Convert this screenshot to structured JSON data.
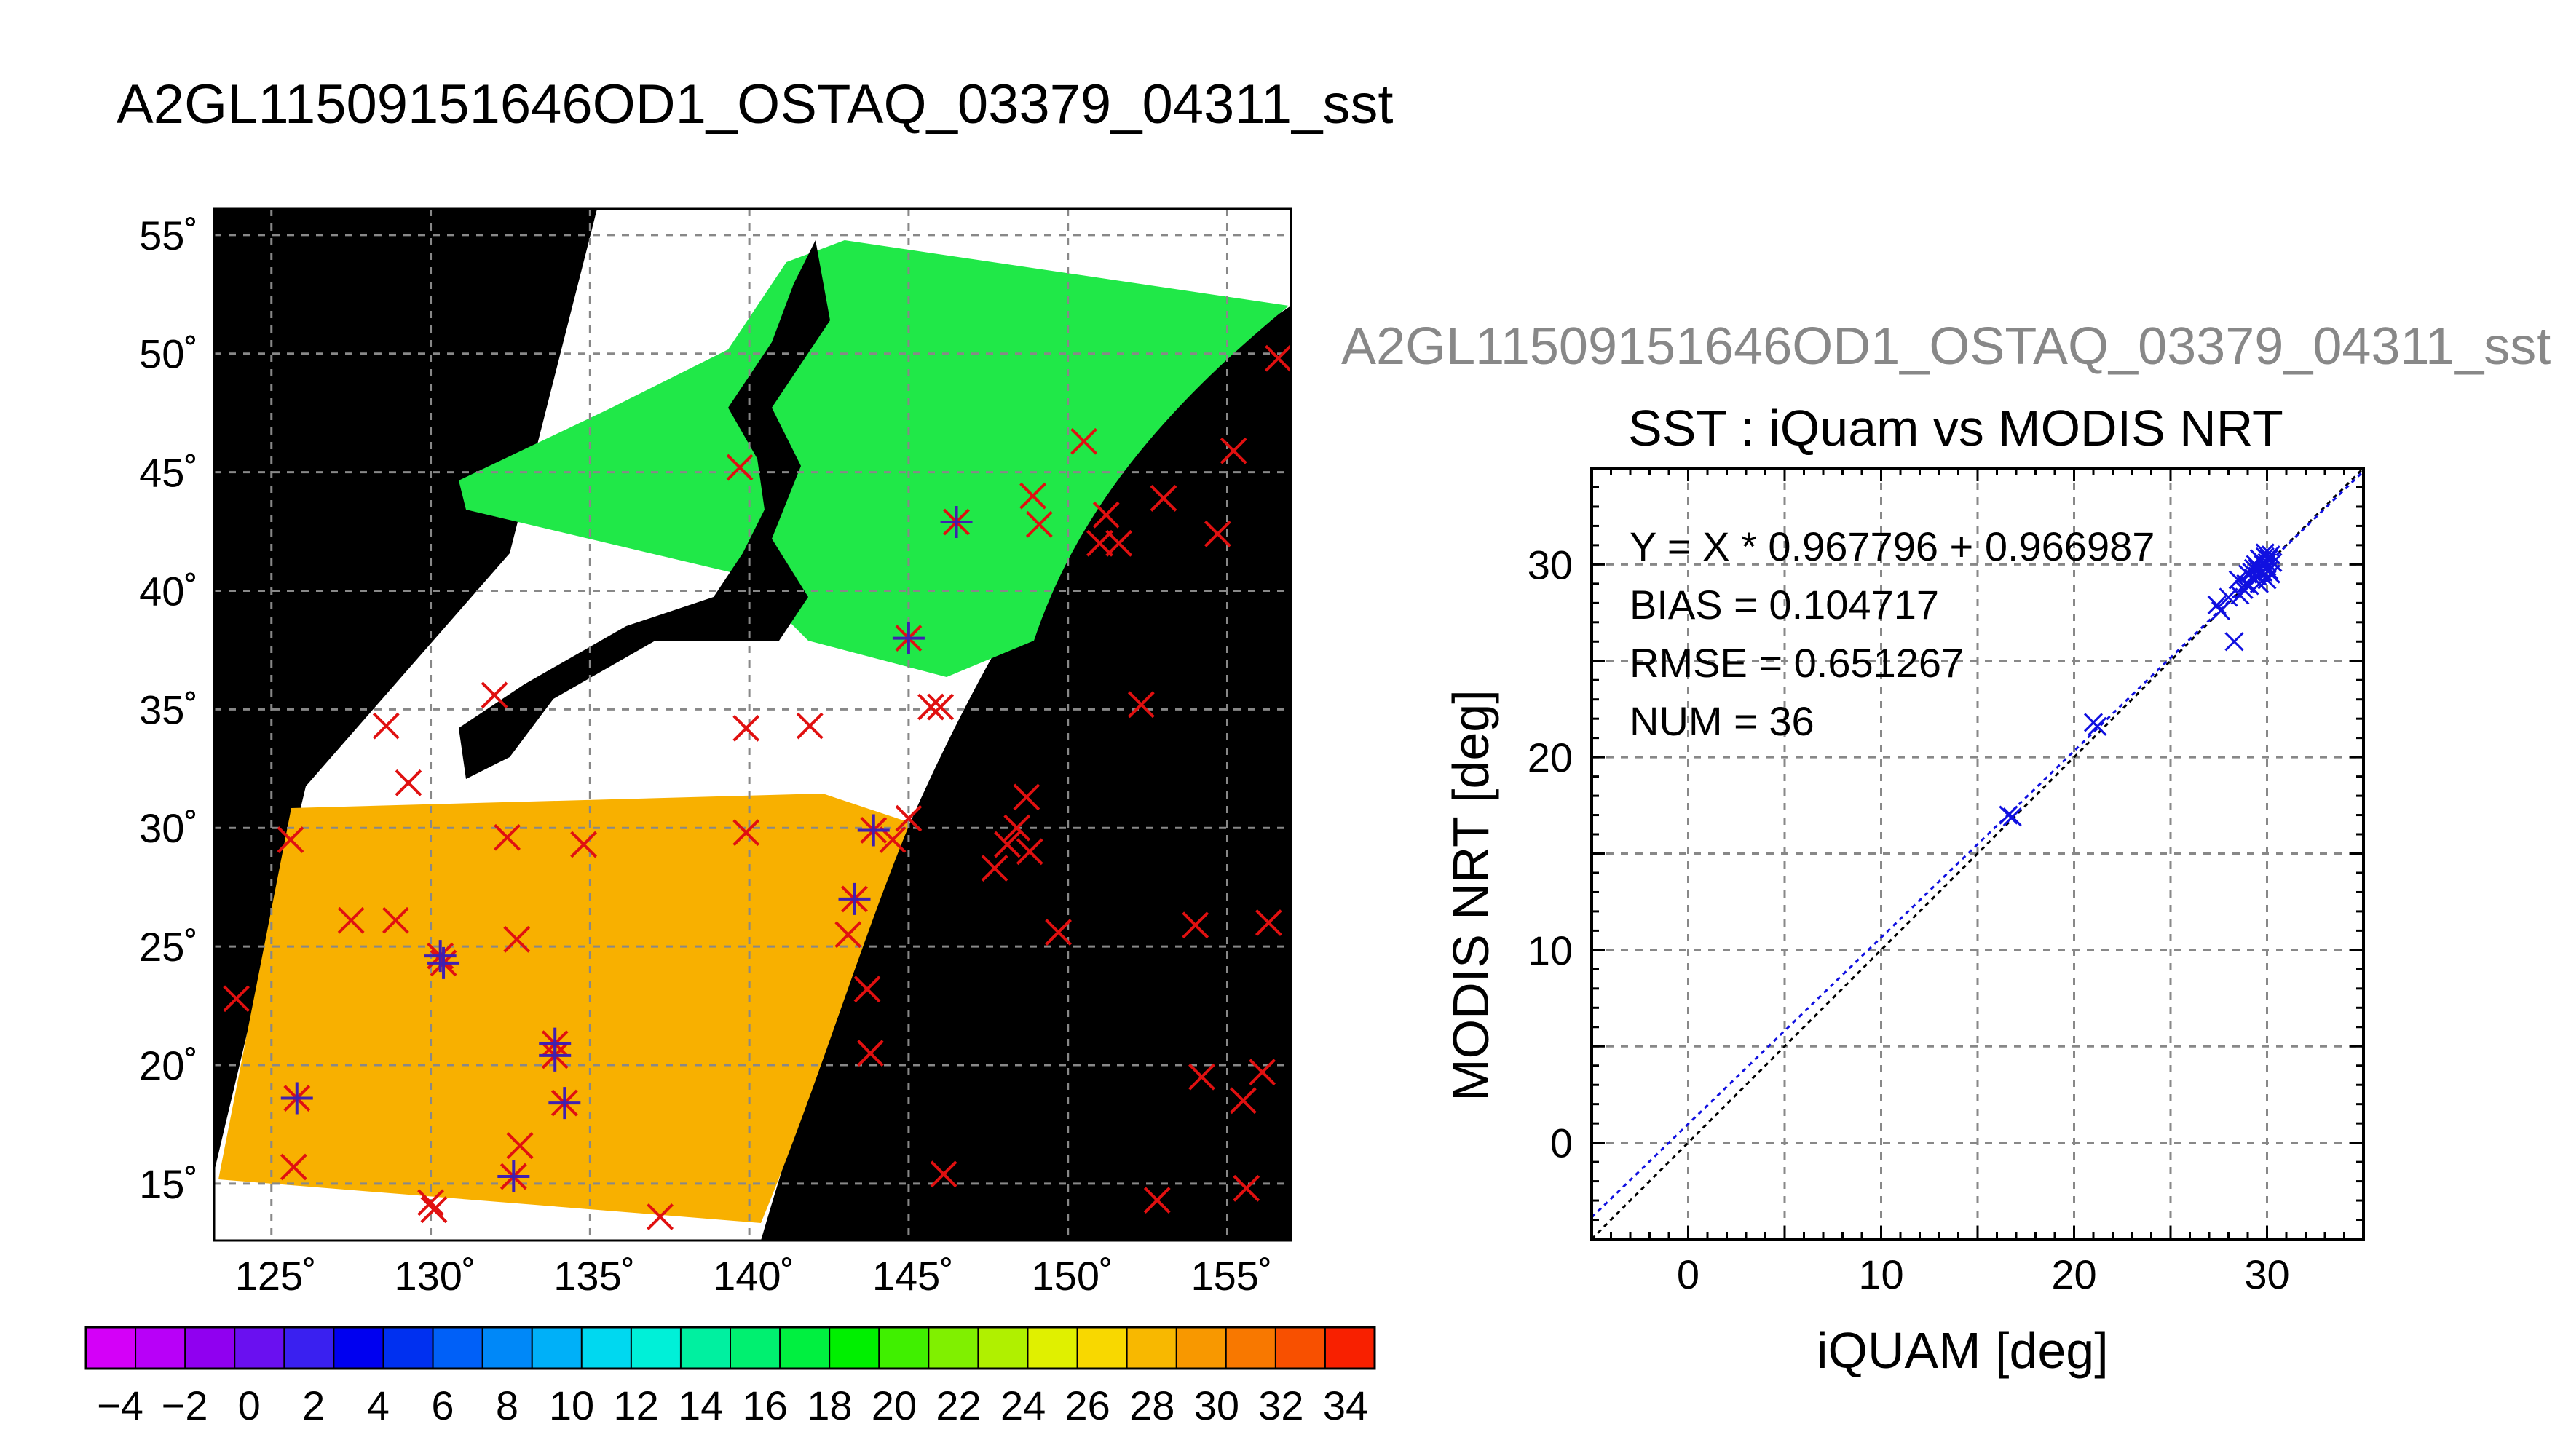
{
  "map": {
    "title": "A2GL11509151646OD1_OSTAQ_03379_04311_sst",
    "lat_tick_labels": [
      "55˚",
      "50˚",
      "45˚",
      "40˚",
      "35˚",
      "30˚",
      "25˚",
      "20˚",
      "15˚"
    ],
    "lon_tick_labels": [
      "125˚",
      "130˚",
      "135˚",
      "140˚",
      "145˚",
      "150˚",
      "155˚"
    ],
    "colorbar": {
      "tick_labels": [
        "−4",
        "−2",
        "0",
        "2",
        "4",
        "6",
        "8",
        "10",
        "12",
        "14",
        "16",
        "18",
        "20",
        "22",
        "24",
        "26",
        "28",
        "30",
        "32",
        "34"
      ],
      "colors": [
        "#d400f8",
        "#b800f8",
        "#9000f0",
        "#6a10f0",
        "#3a20f0",
        "#0000f0",
        "#0030f0",
        "#0060f8",
        "#0088f8",
        "#00b0f8",
        "#00d8f0",
        "#00f0d8",
        "#00f0a0",
        "#00f070",
        "#00f040",
        "#00f000",
        "#40f000",
        "#80f000",
        "#b0f000",
        "#e0f000",
        "#f8d800",
        "#f8b800",
        "#f89800",
        "#f87800",
        "#f85000",
        "#f82000"
      ]
    },
    "obs_markers_lonlat": [
      [
        123.9,
        22.8
      ],
      [
        125.6,
        29.5
      ],
      [
        125.8,
        18.6
      ],
      [
        125.7,
        15.7
      ],
      [
        127.5,
        26.1
      ],
      [
        128.6,
        34.3
      ],
      [
        128.9,
        26.1
      ],
      [
        129.3,
        31.9
      ],
      [
        130.0,
        14.2
      ],
      [
        130.1,
        13.9
      ],
      [
        130.3,
        24.6
      ],
      [
        130.4,
        24.3
      ],
      [
        132.0,
        35.6
      ],
      [
        132.4,
        29.6
      ],
      [
        132.6,
        15.3
      ],
      [
        132.7,
        25.3
      ],
      [
        132.8,
        16.6
      ],
      [
        133.9,
        20.9
      ],
      [
        133.9,
        20.4
      ],
      [
        134.2,
        18.4
      ],
      [
        134.8,
        29.3
      ],
      [
        137.2,
        13.6
      ],
      [
        139.7,
        45.2
      ],
      [
        139.9,
        34.2
      ],
      [
        139.9,
        29.8
      ],
      [
        141.9,
        34.3
      ],
      [
        143.1,
        25.5
      ],
      [
        143.3,
        27.0
      ],
      [
        143.7,
        23.2
      ],
      [
        143.8,
        20.5
      ],
      [
        143.9,
        29.9
      ],
      [
        144.5,
        29.5
      ],
      [
        145.0,
        30.4
      ],
      [
        145.0,
        38.0
      ],
      [
        145.7,
        35.1
      ],
      [
        146.0,
        35.1
      ],
      [
        146.1,
        15.4
      ],
      [
        146.5,
        42.9
      ],
      [
        147.7,
        28.3
      ],
      [
        148.1,
        29.3
      ],
      [
        148.4,
        30.0
      ],
      [
        148.7,
        31.3
      ],
      [
        148.8,
        29.0
      ],
      [
        148.9,
        44.0
      ],
      [
        149.1,
        42.8
      ],
      [
        149.7,
        25.6
      ],
      [
        150.5,
        46.3
      ],
      [
        151.0,
        42.0
      ],
      [
        151.2,
        43.2
      ],
      [
        151.6,
        42.0
      ],
      [
        152.3,
        35.2
      ],
      [
        152.8,
        14.3
      ],
      [
        153.0,
        43.9
      ],
      [
        154.0,
        25.9
      ],
      [
        154.2,
        19.5
      ],
      [
        154.7,
        42.4
      ],
      [
        155.2,
        45.9
      ],
      [
        155.5,
        18.5
      ],
      [
        155.6,
        14.8
      ],
      [
        156.1,
        19.7
      ],
      [
        156.3,
        26.0
      ],
      [
        156.6,
        49.8
      ]
    ],
    "matchup_markers_lonlat": [
      [
        125.8,
        18.6
      ],
      [
        130.3,
        24.6
      ],
      [
        130.4,
        24.3
      ],
      [
        132.6,
        15.3
      ],
      [
        133.9,
        20.9
      ],
      [
        133.9,
        20.4
      ],
      [
        134.2,
        18.4
      ],
      [
        143.3,
        27.0
      ],
      [
        143.9,
        29.9
      ],
      [
        145.0,
        38.0
      ],
      [
        146.5,
        42.9
      ]
    ]
  },
  "scatter": {
    "file_label": "A2GL11509151646OD1_OSTAQ_03379_04311_sst",
    "stats": {
      "fit": "Y = X * 0.967796 + 0.966987",
      "bias": "BIAS = 0.104717",
      "rmse": "RMSE = 0.651267",
      "num": "NUM = 36"
    }
  },
  "chart_data": {
    "type": "scatter",
    "title": "SST : iQuam vs MODIS NRT",
    "xlabel": "iQUAM [deg]",
    "ylabel": "MODIS NRT [deg]",
    "xlim": [
      -5,
      35
    ],
    "ylim": [
      -5,
      35
    ],
    "x_ticks": [
      0,
      10,
      20,
      30
    ],
    "y_ticks": [
      0,
      10,
      20,
      30
    ],
    "grid": true,
    "fit": {
      "slope": 0.967796,
      "intercept": 0.966987
    },
    "series": [
      {
        "color": "#1010e0",
        "points": [
          [
            16.6,
            17.0
          ],
          [
            16.8,
            16.9
          ],
          [
            21.0,
            21.8
          ],
          [
            21.2,
            21.6
          ],
          [
            27.4,
            27.9
          ],
          [
            27.6,
            27.6
          ],
          [
            28.0,
            28.3
          ],
          [
            28.3,
            26.0
          ],
          [
            28.5,
            29.2
          ],
          [
            28.6,
            28.4
          ],
          [
            28.8,
            28.7
          ],
          [
            29.0,
            29.5
          ],
          [
            29.1,
            28.9
          ],
          [
            29.3,
            29.3
          ],
          [
            29.5,
            29.8
          ],
          [
            29.6,
            29.0
          ],
          [
            29.7,
            30.2
          ],
          [
            29.8,
            29.6
          ],
          [
            29.9,
            30.4
          ],
          [
            30.0,
            29.9
          ],
          [
            30.1,
            30.3
          ],
          [
            29.9,
            30.6
          ],
          [
            30.2,
            29.5
          ],
          [
            30.3,
            30.1
          ],
          [
            30.0,
            29.2
          ],
          [
            29.7,
            29.6
          ],
          [
            29.4,
            30.0
          ],
          [
            29.2,
            29.6
          ],
          [
            30.2,
            30.5
          ],
          [
            28.9,
            29.0
          ],
          [
            29.6,
            30.3
          ],
          [
            30.1,
            29.7
          ],
          [
            29.8,
            30.0
          ],
          [
            29.5,
            29.4
          ],
          [
            30.0,
            30.1
          ],
          [
            29.3,
            29.8
          ]
        ]
      }
    ]
  }
}
